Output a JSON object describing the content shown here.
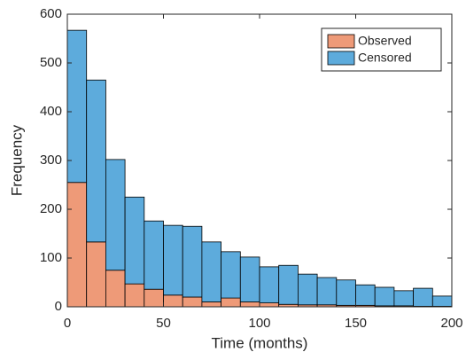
{
  "chart_data": {
    "type": "histogram",
    "stacked": true,
    "xlabel": "Time (months)",
    "ylabel": "Frequency",
    "bins": [
      0,
      10,
      20,
      30,
      40,
      50,
      60,
      70,
      80,
      90,
      100,
      110,
      120,
      130,
      140,
      150,
      160,
      170,
      180,
      190,
      200
    ],
    "series": [
      {
        "name": "Observed",
        "color": "#ee9a78",
        "values": [
          255,
          133,
          75,
          47,
          36,
          24,
          20,
          10,
          18,
          10,
          8,
          5,
          4,
          4,
          3,
          3,
          2,
          2,
          1,
          1
        ]
      },
      {
        "name": "Censored",
        "color": "#5dabdc",
        "values": [
          312,
          332,
          227,
          178,
          140,
          143,
          145,
          123,
          95,
          92,
          74,
          80,
          63,
          56,
          52,
          42,
          38,
          31,
          37,
          21
        ]
      }
    ],
    "xlim": [
      0,
      200
    ],
    "xticks": [
      0,
      50,
      100,
      150,
      200
    ],
    "ylim": [
      0,
      600
    ],
    "yticks": [
      0,
      100,
      200,
      300,
      400,
      500,
      600
    ],
    "legend": "upper right"
  }
}
